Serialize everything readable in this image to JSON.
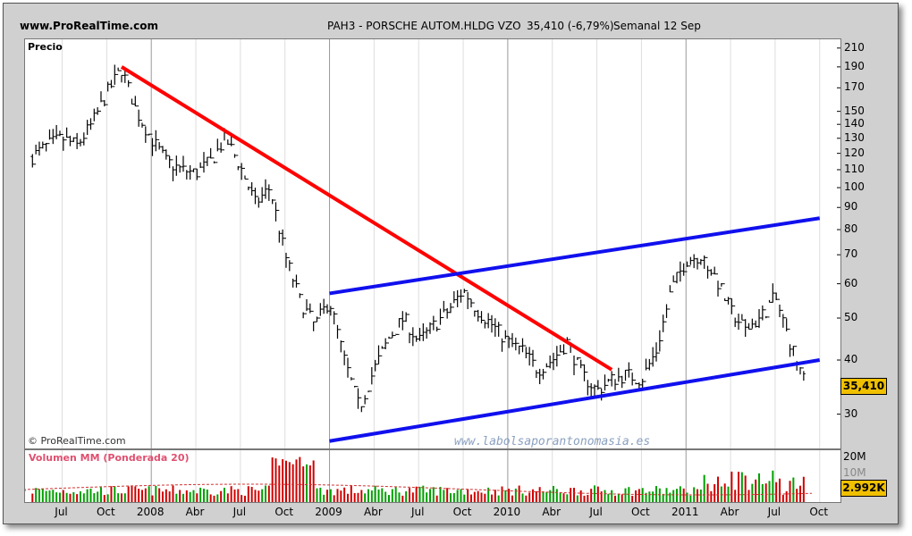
{
  "header": {
    "site": "www.ProRealTime.com",
    "instrument": "PAH3 - PORSCHE AUTOM.HLDG VZO",
    "quote": "35,410 (-6,79%)",
    "period": "Semanal  12 Sep"
  },
  "price_panel": {
    "label": "Precio",
    "copyright": "© ProRealTime.com",
    "watermark": "www.labolsaporantonomasia.es",
    "last_badge": "35,410"
  },
  "volume_panel": {
    "label": "Volumen MM (Ponderada 20)",
    "last_badge": "2.992K",
    "ticks": [
      "20M",
      "10M"
    ]
  },
  "colors": {
    "up": "#00a000",
    "down": "#d00000",
    "trend_red": "#ff0000",
    "channel_blue": "#1010ee",
    "badge": "#f0c000"
  },
  "chart_data": {
    "type": "bar",
    "scale": "log",
    "ylim": [
      25,
      220
    ],
    "y_ticks": [
      30,
      40,
      50,
      60,
      70,
      80,
      90,
      100,
      110,
      120,
      130,
      140,
      150,
      170,
      190,
      210
    ],
    "x_ticks": [
      "Jul",
      "Oct",
      "2008",
      "Abr",
      "Jul",
      "Oct",
      "2009",
      "Abr",
      "Jul",
      "Oct",
      "2010",
      "Abr",
      "Jul",
      "Oct",
      "2011",
      "Abr",
      "Jul",
      "Oct"
    ],
    "x_tick_dates": [
      "2007-07",
      "2007-10",
      "2008-01",
      "2008-04",
      "2008-07",
      "2008-10",
      "2009-01",
      "2009-04",
      "2009-07",
      "2009-10",
      "2010-01",
      "2010-04",
      "2010-07",
      "2010-10",
      "2011-01",
      "2011-04",
      "2011-07",
      "2011-10"
    ],
    "price_path": [
      [
        "2007-05",
        118
      ],
      [
        "2007-06",
        125
      ],
      [
        "2007-07",
        130
      ],
      [
        "2007-08",
        125
      ],
      [
        "2007-09",
        140
      ],
      [
        "2007-10",
        165
      ],
      [
        "2007-11",
        188
      ],
      [
        "2007-12",
        150
      ],
      [
        "2008-01",
        130
      ],
      [
        "2008-02",
        115
      ],
      [
        "2008-03",
        110
      ],
      [
        "2008-04",
        108
      ],
      [
        "2008-05",
        115
      ],
      [
        "2008-06",
        130
      ],
      [
        "2008-07",
        112
      ],
      [
        "2008-08",
        92
      ],
      [
        "2008-09",
        100
      ],
      [
        "2008-10",
        70
      ],
      [
        "2008-11",
        55
      ],
      [
        "2008-12",
        48
      ],
      [
        "2009-01",
        55
      ],
      [
        "2009-02",
        40
      ],
      [
        "2009-03",
        31
      ],
      [
        "2009-04",
        38
      ],
      [
        "2009-05",
        45
      ],
      [
        "2009-06",
        50
      ],
      [
        "2009-07",
        44
      ],
      [
        "2009-08",
        48
      ],
      [
        "2009-09",
        52
      ],
      [
        "2009-10",
        58
      ],
      [
        "2009-11",
        52
      ],
      [
        "2009-12",
        48
      ],
      [
        "2010-01",
        44
      ],
      [
        "2010-02",
        42
      ],
      [
        "2010-03",
        38
      ],
      [
        "2010-04",
        40
      ],
      [
        "2010-05",
        44
      ],
      [
        "2010-06",
        37
      ],
      [
        "2010-07",
        34
      ],
      [
        "2010-08",
        36
      ],
      [
        "2010-09",
        37
      ],
      [
        "2010-10",
        36
      ],
      [
        "2010-11",
        42
      ],
      [
        "2010-12",
        58
      ],
      [
        "2011-01",
        68
      ],
      [
        "2011-02",
        70
      ],
      [
        "2011-03",
        62
      ],
      [
        "2011-04",
        52
      ],
      [
        "2011-05",
        47
      ],
      [
        "2011-06",
        50
      ],
      [
        "2011-07",
        56
      ],
      [
        "2011-08",
        44
      ],
      [
        "2011-09",
        35.41
      ]
    ],
    "trendlines": [
      {
        "name": "bajista",
        "color": "red",
        "from": [
          "2007-11",
          190
        ],
        "to": [
          "2010-08",
          38
        ]
      },
      {
        "name": "canal superior",
        "color": "blue",
        "from": [
          "2009-01",
          57
        ],
        "to": [
          "2011-10",
          85
        ]
      },
      {
        "name": "canal inferior",
        "color": "blue",
        "from": [
          "2009-01",
          26
        ],
        "to": [
          "2011-10",
          40
        ]
      }
    ]
  }
}
